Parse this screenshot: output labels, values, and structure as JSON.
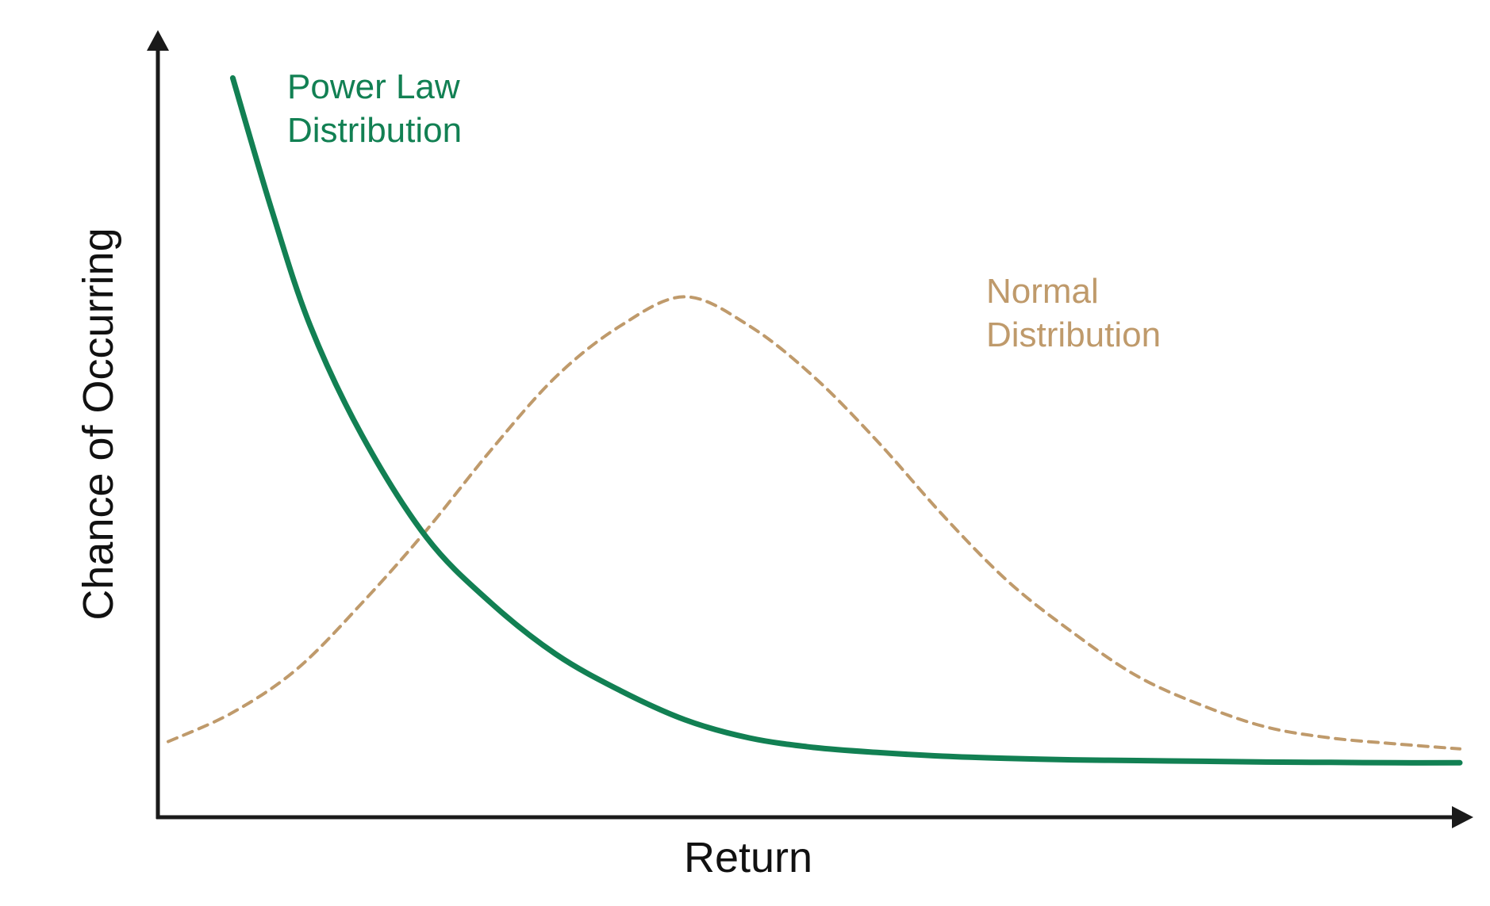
{
  "chart_data": {
    "type": "line",
    "title": "",
    "xlabel": "Return",
    "ylabel": "Chance of Occurring",
    "xlim": [
      0,
      1
    ],
    "ylim": [
      0,
      1
    ],
    "grid": false,
    "ticks": false,
    "series": [
      {
        "name": "Power Law Distribution",
        "label_lines": [
          "Power Law",
          "Distribution"
        ],
        "style": "solid",
        "color": "#128053",
        "x": [
          0.05,
          0.08,
          0.11,
          0.15,
          0.2,
          0.25,
          0.3,
          0.35,
          0.4,
          0.45,
          0.5,
          0.55,
          0.6,
          0.65,
          0.7,
          0.75,
          0.8,
          0.85,
          0.9,
          0.95,
          1.0
        ],
        "y": [
          0.98,
          0.8,
          0.64,
          0.49,
          0.35,
          0.26,
          0.19,
          0.14,
          0.1,
          0.075,
          0.062,
          0.055,
          0.05,
          0.047,
          0.045,
          0.044,
          0.043,
          0.042,
          0.0415,
          0.041,
          0.041
        ]
      },
      {
        "name": "Normal Distribution",
        "label_lines": [
          "Normal",
          "Distribution"
        ],
        "style": "dashed",
        "color": "#bf9a6b",
        "x": [
          0.0,
          0.05,
          0.1,
          0.15,
          0.2,
          0.25,
          0.3,
          0.35,
          0.4,
          0.45,
          0.5,
          0.55,
          0.6,
          0.65,
          0.7,
          0.75,
          0.8,
          0.85,
          0.9,
          0.95,
          1.0
        ],
        "y": [
          0.07,
          0.11,
          0.17,
          0.26,
          0.36,
          0.47,
          0.57,
          0.64,
          0.68,
          0.64,
          0.57,
          0.48,
          0.38,
          0.29,
          0.22,
          0.16,
          0.12,
          0.09,
          0.075,
          0.067,
          0.06
        ]
      }
    ]
  }
}
